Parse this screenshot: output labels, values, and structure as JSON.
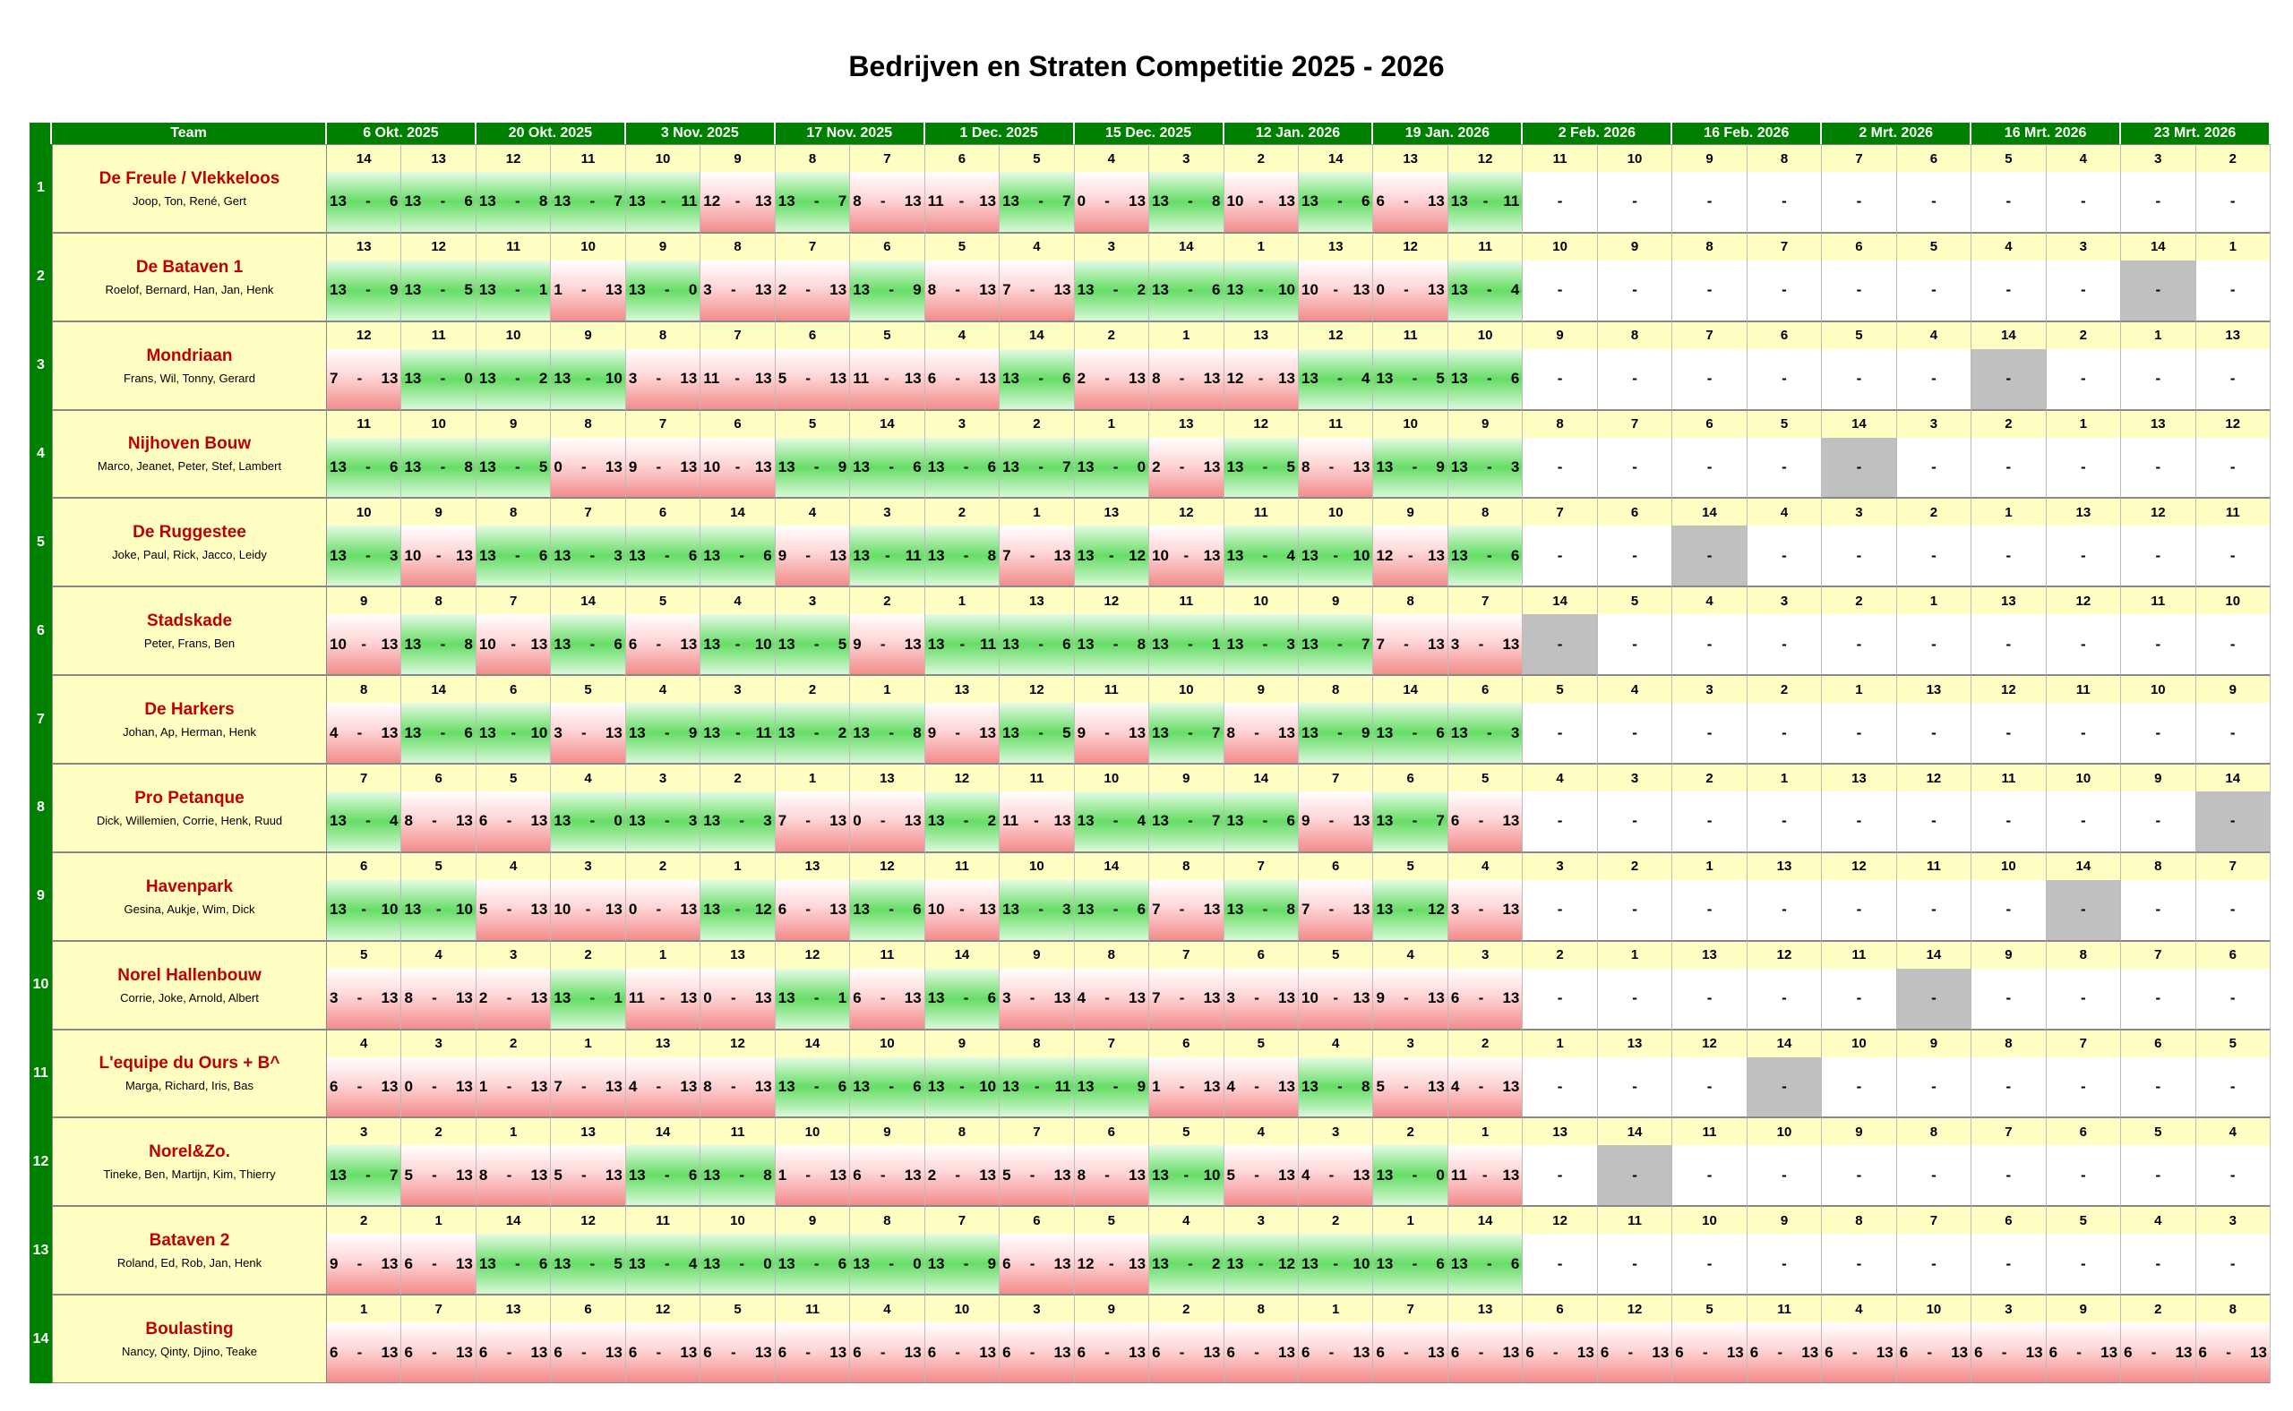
{
  "title": "Bedrijven en Straten Competitie 2025 - 2026",
  "header": {
    "team": "Team",
    "dates": [
      "6 Okt. 2025",
      "20 Okt. 2025",
      "3 Nov. 2025",
      "17 Nov. 2025",
      "1 Dec. 2025",
      "15 Dec. 2025",
      "12 Jan. 2026",
      "19 Jan. 2026",
      "2 Feb. 2026",
      "16 Feb. 2026",
      "2 Mrt. 2026",
      "16 Mrt. 2026",
      "23 Mrt. 2026"
    ]
  },
  "sep": "-",
  "rows": [
    {
      "num": 1,
      "name": "De Freule / Vlekkeloos",
      "members": "Joop, Ton, René, Gert",
      "bye": null,
      "opp": [
        14,
        13,
        12,
        11,
        10,
        9,
        8,
        7,
        6,
        5,
        4,
        3,
        2,
        14,
        13,
        12,
        11,
        10,
        9,
        8,
        7,
        6,
        5,
        4,
        3,
        2
      ],
      "scores": [
        [
          13,
          6
        ],
        [
          13,
          6
        ],
        [
          13,
          8
        ],
        [
          13,
          7
        ],
        [
          13,
          11
        ],
        [
          12,
          13
        ],
        [
          13,
          7
        ],
        [
          8,
          13
        ],
        [
          11,
          13
        ],
        [
          13,
          7
        ],
        [
          0,
          13
        ],
        [
          13,
          8
        ],
        [
          10,
          13
        ],
        [
          13,
          6
        ],
        [
          6,
          13
        ],
        [
          13,
          11
        ],
        "-",
        "-",
        "-",
        "-",
        "-",
        "-",
        "-",
        "-",
        "-",
        "-"
      ]
    },
    {
      "num": 2,
      "name": "De Bataven 1",
      "members": "Roelof, Bernard, Han, Jan, Henk",
      "bye": 24,
      "opp": [
        13,
        12,
        11,
        10,
        9,
        8,
        7,
        6,
        5,
        4,
        3,
        14,
        1,
        13,
        12,
        11,
        10,
        9,
        8,
        7,
        6,
        5,
        4,
        3,
        14,
        1
      ],
      "scores": [
        [
          13,
          9
        ],
        [
          13,
          5
        ],
        [
          13,
          1
        ],
        [
          1,
          13
        ],
        [
          13,
          0
        ],
        [
          3,
          13
        ],
        [
          2,
          13
        ],
        [
          13,
          9
        ],
        [
          8,
          13
        ],
        [
          7,
          13
        ],
        [
          13,
          2
        ],
        [
          13,
          6
        ],
        [
          13,
          10
        ],
        [
          10,
          13
        ],
        [
          0,
          13
        ],
        [
          13,
          4
        ],
        "-",
        "-",
        "-",
        "-",
        "-",
        "-",
        "-",
        "-",
        "-",
        "-"
      ]
    },
    {
      "num": 3,
      "name": "Mondriaan",
      "members": "Frans, Wil, Tonny, Gerard",
      "bye": 22,
      "opp": [
        12,
        11,
        10,
        9,
        8,
        7,
        6,
        5,
        4,
        14,
        2,
        1,
        13,
        12,
        11,
        10,
        9,
        8,
        7,
        6,
        5,
        4,
        14,
        2,
        1,
        13
      ],
      "scores": [
        [
          7,
          13
        ],
        [
          13,
          0
        ],
        [
          13,
          2
        ],
        [
          13,
          10
        ],
        [
          3,
          13
        ],
        [
          11,
          13
        ],
        [
          5,
          13
        ],
        [
          11,
          13
        ],
        [
          6,
          13
        ],
        [
          13,
          6
        ],
        [
          2,
          13
        ],
        [
          8,
          13
        ],
        [
          12,
          13
        ],
        [
          13,
          4
        ],
        [
          13,
          5
        ],
        [
          13,
          6
        ],
        "-",
        "-",
        "-",
        "-",
        "-",
        "-",
        "-",
        "-",
        "-",
        "-"
      ]
    },
    {
      "num": 4,
      "name": "Nijhoven Bouw",
      "members": "Marco, Jeanet, Peter, Stef, Lambert",
      "bye": 20,
      "opp": [
        11,
        10,
        9,
        8,
        7,
        6,
        5,
        14,
        3,
        2,
        1,
        13,
        12,
        11,
        10,
        9,
        8,
        7,
        6,
        5,
        14,
        3,
        2,
        1,
        13,
        12
      ],
      "scores": [
        [
          13,
          6
        ],
        [
          13,
          8
        ],
        [
          13,
          5
        ],
        [
          0,
          13
        ],
        [
          9,
          13
        ],
        [
          10,
          13
        ],
        [
          13,
          9
        ],
        [
          13,
          6
        ],
        [
          13,
          6
        ],
        [
          13,
          7
        ],
        [
          13,
          0
        ],
        [
          2,
          13
        ],
        [
          13,
          5
        ],
        [
          8,
          13
        ],
        [
          13,
          9
        ],
        [
          13,
          3
        ],
        "-",
        "-",
        "-",
        "-",
        "-",
        "-",
        "-",
        "-",
        "-",
        "-"
      ]
    },
    {
      "num": 5,
      "name": "De Ruggestee",
      "members": "Joke, Paul, Rick, Jacco, Leidy",
      "bye": 18,
      "opp": [
        10,
        9,
        8,
        7,
        6,
        14,
        4,
        3,
        2,
        1,
        13,
        12,
        11,
        10,
        9,
        8,
        7,
        6,
        14,
        4,
        3,
        2,
        1,
        13,
        12,
        11
      ],
      "scores": [
        [
          13,
          3
        ],
        [
          10,
          13
        ],
        [
          13,
          6
        ],
        [
          13,
          3
        ],
        [
          13,
          6
        ],
        [
          13,
          6
        ],
        [
          9,
          13
        ],
        [
          13,
          11
        ],
        [
          13,
          8
        ],
        [
          7,
          13
        ],
        [
          13,
          12
        ],
        [
          10,
          13
        ],
        [
          13,
          4
        ],
        [
          13,
          10
        ],
        [
          12,
          13
        ],
        [
          13,
          6
        ],
        "-",
        "-",
        "-",
        "-",
        "-",
        "-",
        "-",
        "-",
        "-",
        "-"
      ]
    },
    {
      "num": 6,
      "name": "Stadskade",
      "members": "Peter, Frans, Ben",
      "bye": 16,
      "opp": [
        9,
        8,
        7,
        14,
        5,
        4,
        3,
        2,
        1,
        13,
        12,
        11,
        10,
        9,
        8,
        7,
        14,
        5,
        4,
        3,
        2,
        1,
        13,
        12,
        11,
        10
      ],
      "scores": [
        [
          10,
          13
        ],
        [
          13,
          8
        ],
        [
          10,
          13
        ],
        [
          13,
          6
        ],
        [
          6,
          13
        ],
        [
          13,
          10
        ],
        [
          13,
          5
        ],
        [
          9,
          13
        ],
        [
          13,
          11
        ],
        [
          13,
          6
        ],
        [
          13,
          8
        ],
        [
          13,
          1
        ],
        [
          13,
          3
        ],
        [
          13,
          7
        ],
        [
          7,
          13
        ],
        [
          3,
          13
        ],
        "-",
        "-",
        "-",
        "-",
        "-",
        "-",
        "-",
        "-",
        "-",
        "-"
      ]
    },
    {
      "num": 7,
      "name": "De Harkers",
      "members": "Johan, Ap, Herman, Henk",
      "bye": null,
      "opp": [
        8,
        14,
        6,
        5,
        4,
        3,
        2,
        1,
        13,
        12,
        11,
        10,
        9,
        8,
        14,
        6,
        5,
        4,
        3,
        2,
        1,
        13,
        12,
        11,
        10,
        9
      ],
      "scores": [
        [
          4,
          13
        ],
        [
          13,
          6
        ],
        [
          13,
          10
        ],
        [
          3,
          13
        ],
        [
          13,
          9
        ],
        [
          13,
          11
        ],
        [
          13,
          2
        ],
        [
          13,
          8
        ],
        [
          9,
          13
        ],
        [
          13,
          5
        ],
        [
          9,
          13
        ],
        [
          13,
          7
        ],
        [
          8,
          13
        ],
        [
          13,
          9
        ],
        [
          13,
          6
        ],
        [
          13,
          3
        ],
        "-",
        "-",
        "-",
        "-",
        "-",
        "-",
        "-",
        "-",
        "-",
        "-"
      ]
    },
    {
      "num": 8,
      "name": "Pro Petanque",
      "members": "Dick, Willemien, Corrie, Henk, Ruud",
      "bye": 25,
      "opp": [
        7,
        6,
        5,
        4,
        3,
        2,
        1,
        13,
        12,
        11,
        10,
        9,
        14,
        7,
        6,
        5,
        4,
        3,
        2,
        1,
        13,
        12,
        11,
        10,
        9,
        14
      ],
      "scores": [
        [
          13,
          4
        ],
        [
          8,
          13
        ],
        [
          6,
          13
        ],
        [
          13,
          0
        ],
        [
          13,
          3
        ],
        [
          13,
          3
        ],
        [
          7,
          13
        ],
        [
          0,
          13
        ],
        [
          13,
          2
        ],
        [
          11,
          13
        ],
        [
          13,
          4
        ],
        [
          13,
          7
        ],
        [
          13,
          6
        ],
        [
          9,
          13
        ],
        [
          13,
          7
        ],
        [
          6,
          13
        ],
        "-",
        "-",
        "-",
        "-",
        "-",
        "-",
        "-",
        "-",
        "-",
        "-"
      ]
    },
    {
      "num": 9,
      "name": "Havenpark",
      "members": "Gesina, Aukje, Wim, Dick",
      "bye": 23,
      "opp": [
        6,
        5,
        4,
        3,
        2,
        1,
        13,
        12,
        11,
        10,
        14,
        8,
        7,
        6,
        5,
        4,
        3,
        2,
        1,
        13,
        12,
        11,
        10,
        14,
        8,
        7
      ],
      "scores": [
        [
          13,
          10
        ],
        [
          13,
          10
        ],
        [
          5,
          13
        ],
        [
          10,
          13
        ],
        [
          0,
          13
        ],
        [
          13,
          12
        ],
        [
          6,
          13
        ],
        [
          13,
          6
        ],
        [
          10,
          13
        ],
        [
          13,
          3
        ],
        [
          13,
          6
        ],
        [
          7,
          13
        ],
        [
          13,
          8
        ],
        [
          7,
          13
        ],
        [
          13,
          12
        ],
        [
          3,
          13
        ],
        "-",
        "-",
        "-",
        "-",
        "-",
        "-",
        "-",
        "-",
        "-",
        "-"
      ]
    },
    {
      "num": 10,
      "name": "Norel Hallenbouw",
      "members": "Corrie, Joke, Arnold, Albert",
      "bye": 21,
      "opp": [
        5,
        4,
        3,
        2,
        1,
        13,
        12,
        11,
        14,
        9,
        8,
        7,
        6,
        5,
        4,
        3,
        2,
        1,
        13,
        12,
        11,
        14,
        9,
        8,
        7,
        6
      ],
      "scores": [
        [
          3,
          13
        ],
        [
          8,
          13
        ],
        [
          2,
          13
        ],
        [
          13,
          1
        ],
        [
          11,
          13
        ],
        [
          0,
          13
        ],
        [
          13,
          1
        ],
        [
          6,
          13
        ],
        [
          13,
          6
        ],
        [
          3,
          13
        ],
        [
          4,
          13
        ],
        [
          7,
          13
        ],
        [
          3,
          13
        ],
        [
          10,
          13
        ],
        [
          9,
          13
        ],
        [
          6,
          13
        ],
        "-",
        "-",
        "-",
        "-",
        "-",
        "-",
        "-",
        "-",
        "-",
        "-"
      ]
    },
    {
      "num": 11,
      "name": "L'equipe du Ours  + B^",
      "members": "Marga, Richard, Iris, Bas",
      "bye": 19,
      "opp": [
        4,
        3,
        2,
        1,
        13,
        12,
        14,
        10,
        9,
        8,
        7,
        6,
        5,
        4,
        3,
        2,
        1,
        13,
        12,
        14,
        10,
        9,
        8,
        7,
        6,
        5
      ],
      "scores": [
        [
          6,
          13
        ],
        [
          0,
          13
        ],
        [
          1,
          13
        ],
        [
          7,
          13
        ],
        [
          4,
          13
        ],
        [
          8,
          13
        ],
        [
          13,
          6
        ],
        [
          13,
          6
        ],
        [
          13,
          10
        ],
        [
          13,
          11
        ],
        [
          13,
          9
        ],
        [
          1,
          13
        ],
        [
          4,
          13
        ],
        [
          13,
          8
        ],
        [
          5,
          13
        ],
        [
          4,
          13
        ],
        "-",
        "-",
        "-",
        "-",
        "-",
        "-",
        "-",
        "-",
        "-",
        "-"
      ]
    },
    {
      "num": 12,
      "name": "Norel&Zo.",
      "members": "Tineke, Ben, Martijn, Kim, Thierry",
      "bye": 17,
      "opp": [
        3,
        2,
        1,
        13,
        14,
        11,
        10,
        9,
        8,
        7,
        6,
        5,
        4,
        3,
        2,
        1,
        13,
        14,
        11,
        10,
        9,
        8,
        7,
        6,
        5,
        4
      ],
      "scores": [
        [
          13,
          7
        ],
        [
          5,
          13
        ],
        [
          8,
          13
        ],
        [
          5,
          13
        ],
        [
          13,
          6
        ],
        [
          13,
          8
        ],
        [
          1,
          13
        ],
        [
          6,
          13
        ],
        [
          2,
          13
        ],
        [
          5,
          13
        ],
        [
          8,
          13
        ],
        [
          13,
          10
        ],
        [
          5,
          13
        ],
        [
          4,
          13
        ],
        [
          13,
          0
        ],
        [
          11,
          13
        ],
        "-",
        "-",
        "-",
        "-",
        "-",
        "-",
        "-",
        "-",
        "-",
        "-"
      ]
    },
    {
      "num": 13,
      "name": "Bataven 2",
      "members": "Roland, Ed, Rob, Jan, Henk",
      "bye": null,
      "opp": [
        2,
        1,
        14,
        12,
        11,
        10,
        9,
        8,
        7,
        6,
        5,
        4,
        3,
        2,
        1,
        14,
        12,
        11,
        10,
        9,
        8,
        7,
        6,
        5,
        4,
        3
      ],
      "scores": [
        [
          9,
          13
        ],
        [
          6,
          13
        ],
        [
          13,
          6
        ],
        [
          13,
          5
        ],
        [
          13,
          4
        ],
        [
          13,
          0
        ],
        [
          13,
          6
        ],
        [
          13,
          0
        ],
        [
          13,
          9
        ],
        [
          6,
          13
        ],
        [
          12,
          13
        ],
        [
          13,
          2
        ],
        [
          13,
          12
        ],
        [
          13,
          10
        ],
        [
          13,
          6
        ],
        [
          13,
          6
        ],
        "-",
        "-",
        "-",
        "-",
        "-",
        "-",
        "-",
        "-",
        "-",
        "-"
      ]
    },
    {
      "num": 14,
      "name": "Boulasting",
      "members": "Nancy, Qinty, Djino, Teake",
      "bye": null,
      "opp": [
        1,
        7,
        13,
        6,
        12,
        5,
        11,
        4,
        10,
        3,
        9,
        2,
        8,
        1,
        7,
        13,
        6,
        12,
        5,
        11,
        4,
        10,
        3,
        9,
        2,
        8
      ],
      "scores": [
        [
          6,
          13
        ],
        [
          6,
          13
        ],
        [
          6,
          13
        ],
        [
          6,
          13
        ],
        [
          6,
          13
        ],
        [
          6,
          13
        ],
        [
          6,
          13
        ],
        [
          6,
          13
        ],
        [
          6,
          13
        ],
        [
          6,
          13
        ],
        [
          6,
          13
        ],
        [
          6,
          13
        ],
        [
          6,
          13
        ],
        [
          6,
          13
        ],
        [
          6,
          13
        ],
        [
          6,
          13
        ],
        [
          6,
          13
        ],
        [
          6,
          13
        ],
        [
          6,
          13
        ],
        [
          6,
          13
        ],
        [
          6,
          13
        ],
        [
          6,
          13
        ],
        [
          6,
          13
        ],
        [
          6,
          13
        ],
        [
          6,
          13
        ],
        [
          6,
          13
        ]
      ]
    }
  ]
}
